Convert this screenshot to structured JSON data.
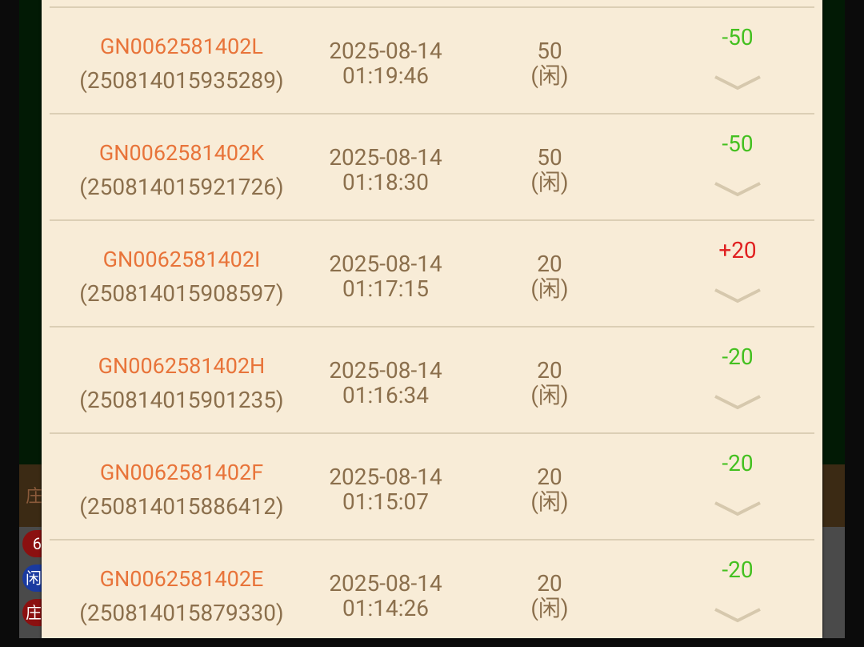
{
  "colors": {
    "win": "#e02020",
    "loss": "#44c020",
    "id": "#e8743a",
    "text": "#8b6f4c"
  },
  "background_chips": [
    "6",
    "闲",
    "庄"
  ],
  "background_strip_char": "庄",
  "records": [
    {
      "game_id": "GN0062581402L",
      "bet_no": "(250814015935289)",
      "date": "2025-08-14",
      "time": "01:19:46",
      "amount": "50",
      "side": "(闲)",
      "result": "-50",
      "outcome": "loss"
    },
    {
      "game_id": "GN0062581402K",
      "bet_no": "(250814015921726)",
      "date": "2025-08-14",
      "time": "01:18:30",
      "amount": "50",
      "side": "(闲)",
      "result": "-50",
      "outcome": "loss"
    },
    {
      "game_id": "GN0062581402I",
      "bet_no": "(250814015908597)",
      "date": "2025-08-14",
      "time": "01:17:15",
      "amount": "20",
      "side": "(闲)",
      "result": "+20",
      "outcome": "win"
    },
    {
      "game_id": "GN0062581402H",
      "bet_no": "(250814015901235)",
      "date": "2025-08-14",
      "time": "01:16:34",
      "amount": "20",
      "side": "(闲)",
      "result": "-20",
      "outcome": "loss"
    },
    {
      "game_id": "GN0062581402F",
      "bet_no": "(250814015886412)",
      "date": "2025-08-14",
      "time": "01:15:07",
      "amount": "20",
      "side": "(闲)",
      "result": "-20",
      "outcome": "loss"
    },
    {
      "game_id": "GN0062581402E",
      "bet_no": "(250814015879330)",
      "date": "2025-08-14",
      "time": "01:14:26",
      "amount": "20",
      "side": "(闲)",
      "result": "-20",
      "outcome": "loss"
    }
  ]
}
